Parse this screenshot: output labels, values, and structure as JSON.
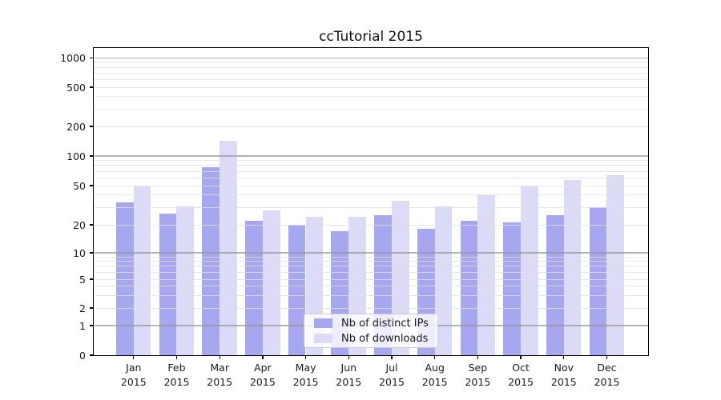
{
  "title": "ccTutorial 2015",
  "chart_data": {
    "type": "bar",
    "title": "ccTutorial 2015",
    "categories": [
      "Jan",
      "Feb",
      "Mar",
      "Apr",
      "May",
      "Jun",
      "Jul",
      "Aug",
      "Sep",
      "Oct",
      "Nov",
      "Dec"
    ],
    "year": "2015",
    "series": [
      {
        "name": "Nb of distinct IPs",
        "color": "#a7a7f0",
        "values": [
          34,
          26,
          77,
          22,
          20,
          17,
          25,
          18,
          22,
          21,
          25,
          30
        ]
      },
      {
        "name": "Nb of downloads",
        "color": "#dbdbf7",
        "values": [
          49,
          31,
          144,
          28,
          24,
          24,
          35,
          31,
          40,
          49,
          57,
          64
        ]
      }
    ],
    "yscale": "symlog",
    "y_ticks": [
      0,
      1,
      2,
      5,
      10,
      20,
      50,
      100,
      200,
      500,
      1000
    ],
    "ylim": [
      0,
      1700
    ],
    "grid": "horizontal, solid major lines at powers of 10, faint minor lines",
    "legend_position": "lower-center"
  },
  "colors": {
    "axis": "#000000",
    "major_grid": "#b5b5b5",
    "minor_grid": "#ececec",
    "background": "#ffffff"
  }
}
